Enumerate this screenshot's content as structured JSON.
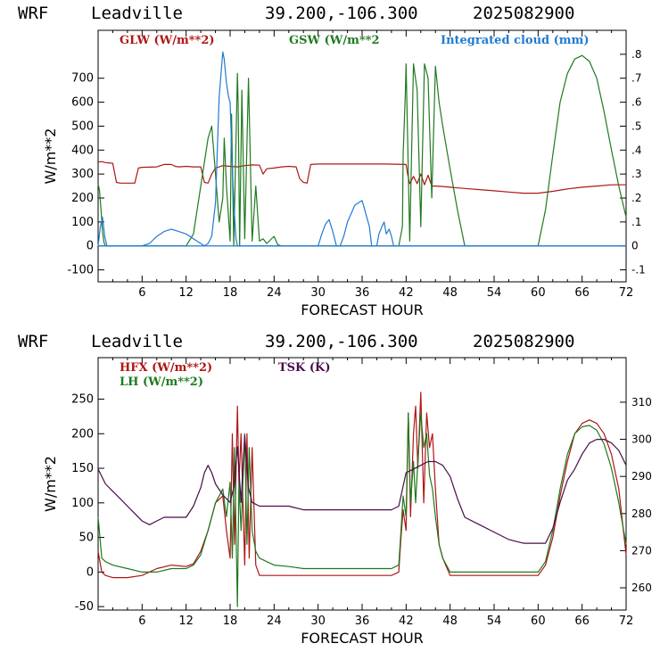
{
  "chart_data": [
    {
      "type": "line",
      "title": {
        "model": "WRF",
        "location": "Leadville",
        "coords": "39.200,-106.300",
        "init": "2025082900"
      },
      "xlabel": "FORECAST HOUR",
      "ylabel": "W/m**2",
      "xlim": [
        0,
        72
      ],
      "ylim": [
        -150,
        900
      ],
      "y2lim": [
        -0.15,
        0.9
      ],
      "xticks": [
        "6",
        "12",
        "18",
        "24",
        "30",
        "36",
        "42",
        "48",
        "54",
        "60",
        "66",
        "72"
      ],
      "yticks": [
        "-100",
        "0",
        "100",
        "200",
        "300",
        "400",
        "500",
        "600",
        "700"
      ],
      "y2ticks": [
        "-.1",
        "0",
        ".1",
        ".2",
        ".3",
        ".4",
        ".5",
        ".6",
        ".7",
        ".8"
      ],
      "legend_position": "top",
      "series": [
        {
          "name": "GLW (W/m**2)",
          "axis": "left",
          "color": "#b01515",
          "x": [
            0,
            0.5,
            1,
            2,
            2.5,
            3,
            5,
            5.5,
            6,
            8,
            8.5,
            9,
            10,
            10.5,
            11,
            12,
            13,
            14,
            14.5,
            15,
            15.5,
            16,
            17,
            18,
            19,
            20,
            21,
            22,
            22.5,
            23,
            24,
            25,
            26,
            27,
            27.5,
            28,
            28.5,
            29,
            30,
            33,
            36,
            39,
            42,
            42.2,
            42.5,
            43,
            43.5,
            44,
            44.5,
            45,
            45.5,
            46,
            47,
            48,
            50,
            52,
            54,
            56,
            58,
            60,
            62,
            64,
            66,
            68,
            70,
            72
          ],
          "y": [
            350,
            352,
            348,
            345,
            265,
            262,
            262,
            325,
            328,
            330,
            335,
            340,
            340,
            332,
            330,
            332,
            330,
            330,
            265,
            262,
            300,
            325,
            335,
            332,
            330,
            335,
            338,
            337,
            300,
            322,
            325,
            330,
            332,
            330,
            280,
            265,
            262,
            340,
            342,
            342,
            342,
            342,
            340,
            300,
            260,
            290,
            260,
            300,
            255,
            295,
            250,
            250,
            248,
            245,
            240,
            235,
            230,
            225,
            220,
            220,
            228,
            238,
            245,
            250,
            255,
            255
          ]
        },
        {
          "name": "GSW (W/m**2",
          "axis": "left",
          "color": "#1f7a1f",
          "x": [
            0,
            0.2,
            0.4,
            0.6,
            0.8,
            1,
            12,
            13,
            14,
            15,
            15.5,
            16,
            16.5,
            17,
            17.2,
            17.5,
            18,
            18.2,
            18.5,
            19,
            19.1,
            19.3,
            19.6,
            20,
            20.5,
            21,
            21.5,
            22,
            22.5,
            23,
            23.5,
            24,
            24.5,
            25,
            25.5,
            26,
            40,
            41,
            41.5,
            41.6,
            41.9,
            42,
            42.5,
            43,
            43.5,
            44,
            44.5,
            45,
            45.5,
            46,
            46.5,
            47,
            48,
            49,
            50,
            60,
            61,
            62,
            63,
            64,
            65,
            66,
            67,
            68,
            69,
            70,
            71,
            72
          ],
          "y": [
            260,
            230,
            150,
            60,
            15,
            0,
            0,
            50,
            250,
            450,
            500,
            300,
            100,
            200,
            450,
            250,
            20,
            550,
            0,
            720,
            600,
            0,
            650,
            30,
            700,
            20,
            250,
            20,
            30,
            10,
            25,
            40,
            5,
            0,
            0,
            0,
            0,
            0,
            80,
            380,
            640,
            760,
            20,
            760,
            650,
            80,
            760,
            700,
            200,
            750,
            600,
            500,
            320,
            150,
            0,
            0,
            150,
            380,
            600,
            720,
            780,
            795,
            770,
            700,
            560,
            400,
            250,
            120
          ]
        },
        {
          "name": "Integrated cloud (mm)",
          "axis": "right",
          "color": "#1f7ad1",
          "x": [
            0,
            0.3,
            0.6,
            0.9,
            1.2,
            2,
            4,
            6,
            7,
            8,
            9,
            10,
            11,
            12,
            13,
            14,
            14.5,
            15,
            15.5,
            16,
            16.5,
            17,
            17.2,
            17.5,
            17.8,
            18,
            18.2,
            18.5,
            18.8,
            19,
            22,
            30,
            30.5,
            31,
            31.5,
            32,
            32.5,
            33,
            33.5,
            34,
            35,
            36,
            37,
            37.3,
            38,
            38.3,
            38.7,
            39,
            39.3,
            39.7,
            40,
            40.3,
            72
          ],
          "y": [
            0,
            0.08,
            0.12,
            0.04,
            0,
            0,
            0,
            0,
            0.01,
            0.04,
            0.06,
            0.07,
            0.06,
            0.05,
            0.03,
            0.01,
            0,
            0.01,
            0.04,
            0.18,
            0.62,
            0.81,
            0.78,
            0.68,
            0.62,
            0.6,
            0.42,
            0.18,
            0.03,
            0,
            0,
            0,
            0.05,
            0.09,
            0.11,
            0.06,
            0,
            0,
            0.04,
            0.1,
            0.17,
            0.19,
            0.08,
            0,
            0,
            0.05,
            0.08,
            0.1,
            0.05,
            0.07,
            0.04,
            0,
            0
          ]
        }
      ]
    },
    {
      "type": "line",
      "title": {
        "model": "WRF",
        "location": "Leadville",
        "coords": "39.200,-106.300",
        "init": "2025082900"
      },
      "xlabel": "FORECAST HOUR",
      "ylabel": "W/m**2",
      "xlim": [
        0,
        72
      ],
      "ylim": [
        -55,
        310
      ],
      "y2lim": [
        254,
        322
      ],
      "xticks": [
        "6",
        "12",
        "18",
        "24",
        "30",
        "36",
        "42",
        "48",
        "54",
        "60",
        "66",
        "72"
      ],
      "yticks": [
        "-50",
        "0",
        "50",
        "100",
        "150",
        "200",
        "250"
      ],
      "y2ticks": [
        "260",
        "270",
        "280",
        "290",
        "300",
        "310"
      ],
      "legend_position": "top-left",
      "series": [
        {
          "name": "HFX (W/m**2)",
          "axis": "left",
          "color": "#b01515",
          "x": [
            0,
            0.5,
            1,
            2,
            4,
            6,
            8,
            10,
            12,
            13,
            14,
            15,
            16,
            17,
            17.5,
            18,
            18.3,
            18.6,
            19,
            19.2,
            19.5,
            20,
            20.3,
            20.6,
            21,
            21.5,
            22,
            24,
            26,
            28,
            30,
            34,
            38,
            40,
            41,
            41.3,
            41.6,
            42,
            42.3,
            42.6,
            43,
            43.3,
            43.6,
            44,
            44.4,
            44.8,
            45.2,
            45.6,
            46,
            46.5,
            47,
            48,
            49,
            50,
            52,
            56,
            60,
            61,
            62,
            63,
            64,
            65,
            66,
            67,
            68,
            69,
            70,
            71,
            72
          ],
          "y": [
            30,
            0,
            -5,
            -8,
            -8,
            -5,
            5,
            10,
            8,
            12,
            30,
            60,
            100,
            110,
            60,
            20,
            200,
            40,
            240,
            130,
            200,
            10,
            200,
            20,
            180,
            10,
            -5,
            -5,
            -5,
            -5,
            -5,
            -5,
            -5,
            -5,
            0,
            50,
            90,
            60,
            230,
            80,
            200,
            240,
            150,
            260,
            100,
            230,
            180,
            200,
            120,
            40,
            20,
            -5,
            -5,
            -5,
            -5,
            -5,
            -5,
            10,
            50,
            110,
            160,
            200,
            215,
            220,
            215,
            200,
            170,
            120,
            25
          ]
        },
        {
          "name": "LH  (W/m**2)",
          "axis": "left",
          "color": "#1f7a1f",
          "x": [
            0,
            0.5,
            1,
            2,
            4,
            6,
            8,
            10,
            12,
            13,
            14,
            15,
            16,
            17,
            17.5,
            18,
            18.3,
            18.6,
            19,
            19.2,
            19.5,
            20,
            20.3,
            20.6,
            21,
            21.5,
            22,
            24,
            26,
            28,
            30,
            34,
            38,
            40,
            41,
            41.3,
            41.6,
            42,
            42.3,
            42.6,
            43,
            43.3,
            43.6,
            44,
            44.4,
            44.8,
            45.2,
            45.6,
            46,
            46.5,
            47,
            48,
            49,
            50,
            52,
            56,
            60,
            61,
            62,
            63,
            64,
            65,
            66,
            67,
            68,
            69,
            70,
            71,
            72
          ],
          "y": [
            80,
            20,
            15,
            10,
            5,
            0,
            0,
            5,
            5,
            10,
            25,
            60,
            100,
            120,
            80,
            130,
            20,
            180,
            -50,
            130,
            60,
            200,
            40,
            180,
            60,
            30,
            20,
            10,
            8,
            5,
            5,
            5,
            5,
            5,
            10,
            60,
            110,
            80,
            230,
            100,
            160,
            100,
            160,
            230,
            180,
            200,
            140,
            120,
            80,
            40,
            20,
            0,
            0,
            0,
            0,
            0,
            0,
            15,
            60,
            120,
            170,
            200,
            210,
            212,
            205,
            185,
            150,
            100,
            40
          ]
        },
        {
          "name": "TSK (K)",
          "axis": "right",
          "color": "#4a0b4a",
          "x": [
            0,
            1,
            2,
            3,
            4,
            5,
            6,
            7,
            8,
            9,
            10,
            11,
            12,
            13,
            14,
            14.5,
            15,
            15.5,
            16,
            17,
            18,
            18.5,
            19,
            19.5,
            20,
            20.5,
            21,
            22,
            24,
            26,
            28,
            30,
            32,
            34,
            36,
            38,
            40,
            41,
            42,
            43,
            44,
            45,
            46,
            47,
            48,
            49,
            50,
            52,
            54,
            56,
            58,
            60,
            61,
            62,
            63,
            64,
            65,
            66,
            67,
            68,
            69,
            70,
            71,
            72
          ],
          "y": [
            292,
            288,
            286,
            284,
            282,
            280,
            278,
            277,
            278,
            279,
            279,
            279,
            279,
            282,
            287,
            291,
            293,
            291,
            288,
            285,
            283,
            287,
            298,
            283,
            301,
            287,
            283,
            282,
            282,
            282,
            281,
            281,
            281,
            281,
            281,
            281,
            281,
            282,
            291,
            292,
            293,
            294,
            294,
            293,
            290,
            284,
            279,
            277,
            275,
            273,
            272,
            272,
            272,
            276,
            283,
            289,
            292,
            296,
            299,
            300,
            300,
            299,
            297,
            293
          ]
        }
      ]
    }
  ]
}
